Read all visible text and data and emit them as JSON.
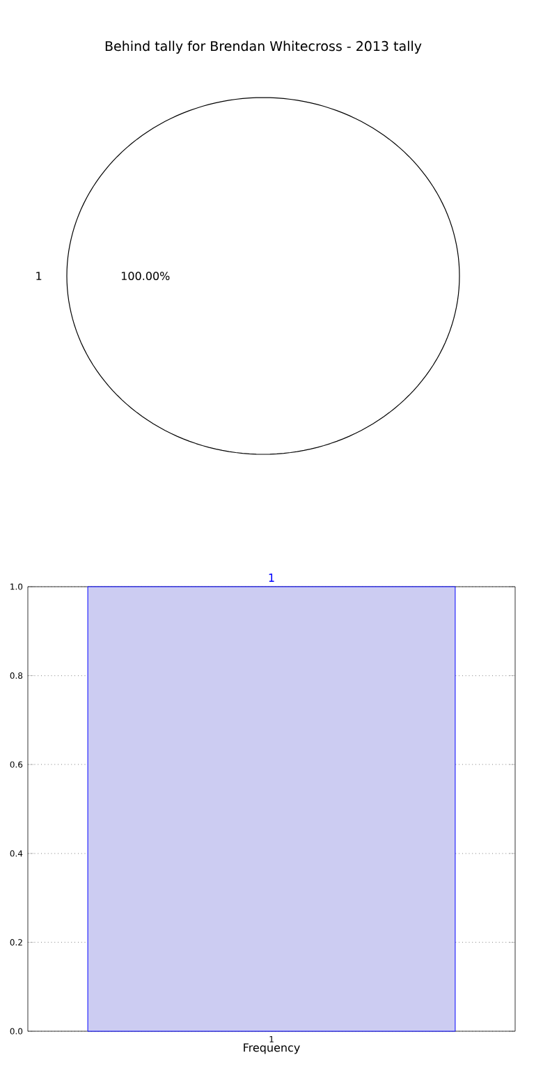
{
  "chart_data": [
    {
      "type": "pie",
      "title": "Behind tally for Brendan Whitecross - 2013 tally",
      "categories": [
        "1"
      ],
      "values": [
        100
      ],
      "colors": [
        "#ffffff"
      ],
      "value_labels": [
        "100.00%"
      ]
    },
    {
      "type": "bar",
      "categories": [
        "1"
      ],
      "values": [
        1.0
      ],
      "color": "#ccccf2",
      "value_labels": [
        "1"
      ],
      "xlabel": "Frequency",
      "ylim": [
        0,
        1
      ],
      "yticks": [
        {
          "value": 0,
          "label": "0.0"
        },
        {
          "value": 0.2,
          "label": "0.2"
        },
        {
          "value": 0.4,
          "label": "0.4"
        },
        {
          "value": 0.6,
          "label": "0.6"
        },
        {
          "value": 0.8,
          "label": "0.8"
        },
        {
          "value": 1,
          "label": "1.0"
        }
      ],
      "grid": true
    }
  ]
}
